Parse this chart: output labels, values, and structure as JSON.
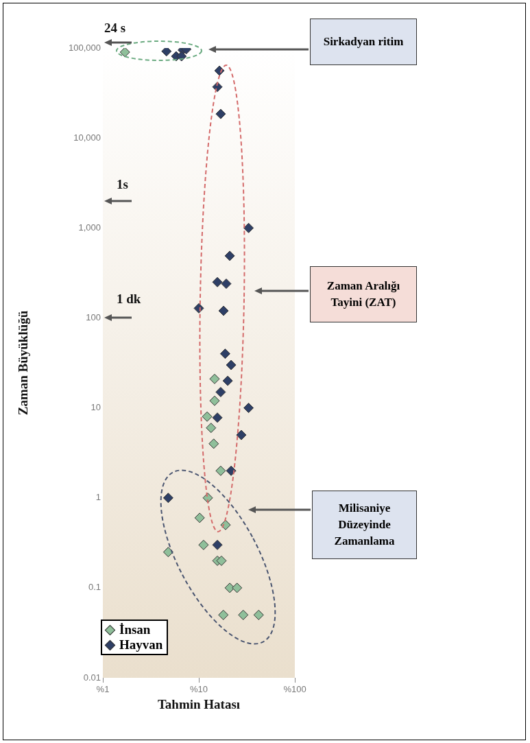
{
  "chart_data": {
    "type": "scatter",
    "xlabel": "Tahmin Hatası",
    "ylabel": "Zaman Büyüklüğü",
    "log": "xy",
    "xlim": [
      1,
      100
    ],
    "ylim": [
      0.01,
      100000
    ],
    "xticks": [
      {
        "value": 1,
        "label": "%1"
      },
      {
        "value": 10,
        "label": "%10"
      },
      {
        "value": 100,
        "label": "%100"
      }
    ],
    "yticks": [
      0.01,
      0.1,
      1,
      10,
      100,
      {
        "value": 1000,
        "label": "1,000"
      },
      {
        "value": 10000,
        "label": "10,000"
      },
      {
        "value": 100000,
        "label": "100,000"
      }
    ],
    "grid": false,
    "legend": "bottom left",
    "marker": "diamond",
    "annotations": [
      "24 s",
      "1s",
      "1 dk",
      "Sirkadyan ritim",
      "Zaman Aralığı Tayini (ZAT)",
      "Milisaniye Düzeyinde Zamanlama"
    ],
    "series": [
      {
        "name": "İnsan",
        "color": "#8fbf9a",
        "x": [
          1.7,
          14.6,
          14.6,
          12.2,
          13.4,
          14.3,
          16.9,
          12.4,
          10.2,
          19,
          11.2,
          4.8,
          15.6,
          17.2,
          21,
          25,
          18,
          29,
          42
        ],
        "values": [
          90000,
          21,
          12,
          8,
          6,
          4,
          2,
          1,
          0.6,
          0.5,
          0.3,
          0.25,
          0.2,
          0.2,
          0.1,
          0.1,
          0.05,
          0.05,
          0.05
        ]
      },
      {
        "name": "Hayvan",
        "color": "#2e3f66",
        "x": [
          4.6,
          5.8,
          6.8,
          7.4,
          6.6,
          16.4,
          15.6,
          16.9,
          33,
          21,
          15.6,
          19.3,
          10,
          18.1,
          18.8,
          21.7,
          20,
          16.9,
          33,
          15.6,
          27.7,
          21.7,
          4.8,
          15.6
        ],
        "values": [
          92000,
          81000,
          95000,
          97000,
          81000,
          56000,
          37000,
          18500,
          1000,
          490,
          250,
          240,
          128,
          120,
          40,
          30,
          20,
          15,
          10,
          7.8,
          5,
          2,
          1,
          0.3
        ]
      }
    ]
  }
}
